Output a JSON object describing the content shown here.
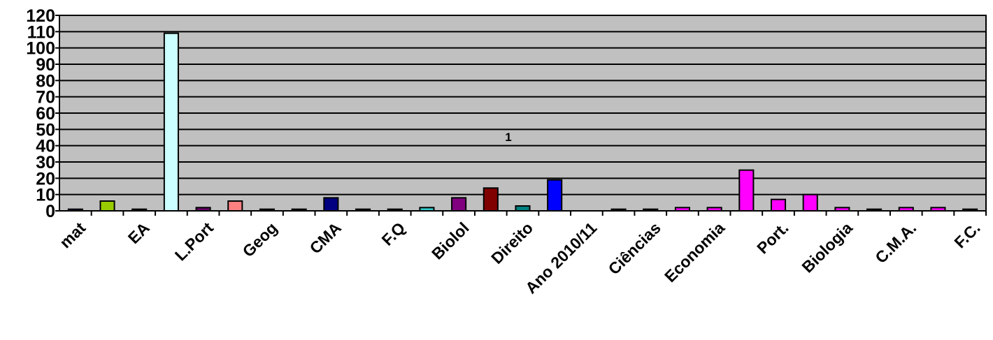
{
  "chart_data": {
    "type": "bar",
    "series_label": "1",
    "ylim": [
      0,
      120
    ],
    "yticks": [
      0,
      10,
      20,
      30,
      40,
      50,
      60,
      70,
      80,
      90,
      100,
      110,
      120
    ],
    "grid": true,
    "legend": "none",
    "plot_background": "#c0c0c0",
    "bars": [
      {
        "label": "mat",
        "value": 1,
        "color": "#000080"
      },
      {
        "label": "",
        "value": 6,
        "color": "#99cc00"
      },
      {
        "label": "EA",
        "value": 1,
        "color": "#000000"
      },
      {
        "label": "",
        "value": 109,
        "color": "#ccffff"
      },
      {
        "label": "L.Port",
        "value": 2,
        "color": "#660066"
      },
      {
        "label": "",
        "value": 6,
        "color": "#ff8080"
      },
      {
        "label": "Geog",
        "value": 1,
        "color": "#000000"
      },
      {
        "label": "",
        "value": 1,
        "color": "#000000"
      },
      {
        "label": "CMA",
        "value": 8,
        "color": "#000080"
      },
      {
        "label": "",
        "value": 1,
        "color": "#000000"
      },
      {
        "label": "F.Q",
        "value": 1,
        "color": "#000000"
      },
      {
        "label": "",
        "value": 2,
        "color": "#33cccc"
      },
      {
        "label": "Biolol",
        "value": 8,
        "color": "#800080"
      },
      {
        "label": "",
        "value": 14,
        "color": "#800000"
      },
      {
        "label": "Direito",
        "value": 3,
        "color": "#008080"
      },
      {
        "label": "",
        "value": 19,
        "color": "#0000ff"
      },
      {
        "label": "Ano 2010/11",
        "value": 0,
        "color": "#c0c0c0"
      },
      {
        "label": "",
        "value": 1,
        "color": "#000000"
      },
      {
        "label": "Ciências",
        "value": 1,
        "color": "#000000"
      },
      {
        "label": "",
        "value": 2,
        "color": "#ff00ff"
      },
      {
        "label": "Economia",
        "value": 2,
        "color": "#ff00ff"
      },
      {
        "label": "",
        "value": 25,
        "color": "#ff00ff"
      },
      {
        "label": "Port.",
        "value": 7,
        "color": "#ff00ff"
      },
      {
        "label": "",
        "value": 10,
        "color": "#ff00ff"
      },
      {
        "label": "Biologia",
        "value": 2,
        "color": "#ff00ff"
      },
      {
        "label": "",
        "value": 1,
        "color": "#000000"
      },
      {
        "label": "C.M.A.",
        "value": 2,
        "color": "#ff00ff"
      },
      {
        "label": "",
        "value": 2,
        "color": "#ff00ff"
      },
      {
        "label": "F.C.",
        "value": 1,
        "color": "#000000"
      }
    ]
  }
}
